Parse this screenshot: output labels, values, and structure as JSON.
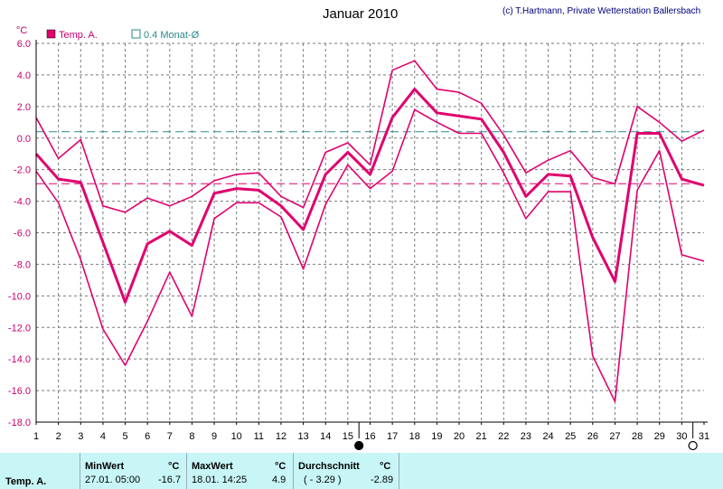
{
  "chart_data": {
    "type": "line",
    "title": "Januar 2010",
    "copyright": "(c) T.Hartmann, Private Wetterstation Ballersbach",
    "ylabel": "°C",
    "ylim": [
      -18,
      6
    ],
    "yticks": [
      "6.0",
      "4.0",
      "2.0",
      "0.0",
      "-2.0",
      "-4.0",
      "-6.0",
      "-8.0",
      "-10.0",
      "-12.0",
      "-14.0",
      "-16.0",
      "-18.0"
    ],
    "x": [
      1,
      2,
      3,
      4,
      5,
      6,
      7,
      8,
      9,
      10,
      11,
      12,
      13,
      14,
      15,
      16,
      17,
      18,
      19,
      20,
      21,
      22,
      23,
      24,
      25,
      26,
      27,
      28,
      29,
      30,
      31
    ],
    "legend": [
      {
        "label": "Temp. A.",
        "color": "#e0006e"
      },
      {
        "label": "0.4 Monat-Ø",
        "color": "#2a8a8a"
      }
    ],
    "series": [
      {
        "role": "max",
        "values": [
          1.3,
          -1.3,
          -0.1,
          -4.3,
          -4.7,
          -3.8,
          -4.3,
          -3.7,
          -2.7,
          -2.3,
          -2.2,
          -3.7,
          -4.4,
          -0.9,
          -0.3,
          -1.7,
          4.3,
          4.9,
          3.1,
          2.9,
          2.2,
          0.2,
          -2.2,
          -1.4,
          -0.8,
          -2.5,
          -2.9,
          2.0,
          1.0,
          -0.2,
          0.5
        ]
      },
      {
        "role": "mean",
        "values": [
          -1.0,
          -2.6,
          -2.8,
          -6.6,
          -10.4,
          -6.7,
          -5.9,
          -6.8,
          -3.5,
          -3.2,
          -3.3,
          -4.3,
          -5.8,
          -2.3,
          -0.9,
          -2.3,
          1.3,
          3.1,
          1.6,
          1.4,
          1.2,
          -0.9,
          -3.7,
          -2.3,
          -2.4,
          -6.3,
          -9.1,
          0.3,
          0.3,
          -2.6,
          -3.0
        ]
      },
      {
        "role": "min",
        "values": [
          -2.1,
          -4.1,
          -7.7,
          -12.1,
          -14.4,
          -11.6,
          -8.5,
          -11.3,
          -5.1,
          -4.1,
          -4.1,
          -5.0,
          -8.3,
          -4.2,
          -1.7,
          -3.2,
          -2.1,
          1.8,
          1.0,
          0.3,
          0.3,
          -2.2,
          -5.1,
          -3.4,
          -3.4,
          -13.8,
          -16.7,
          -3.3,
          -0.8,
          -7.4,
          -7.8
        ]
      }
    ],
    "reference_lines": [
      {
        "role": "monthly-average",
        "value": -2.89,
        "color": "#e0006e"
      },
      {
        "role": "long-term-average",
        "value": 0.4,
        "color": "#2a8a8a"
      }
    ],
    "markers": [
      {
        "role": "new-moon",
        "x": 15.5
      },
      {
        "role": "full-moon",
        "x": 30.5
      }
    ],
    "grid": true
  },
  "stats": {
    "series_name": "Temp. A.",
    "min": {
      "label": "MinWert",
      "unit": "°C",
      "when": "27.01.  05:00",
      "value": "-16.7"
    },
    "max": {
      "label": "MaxWert",
      "unit": "°C",
      "when": "18.01.  14:25",
      "value": "4.9"
    },
    "avg": {
      "label": "Durchschnitt",
      "unit": "°C",
      "ref": "( - 3.29 )",
      "value": "-2.89"
    }
  }
}
